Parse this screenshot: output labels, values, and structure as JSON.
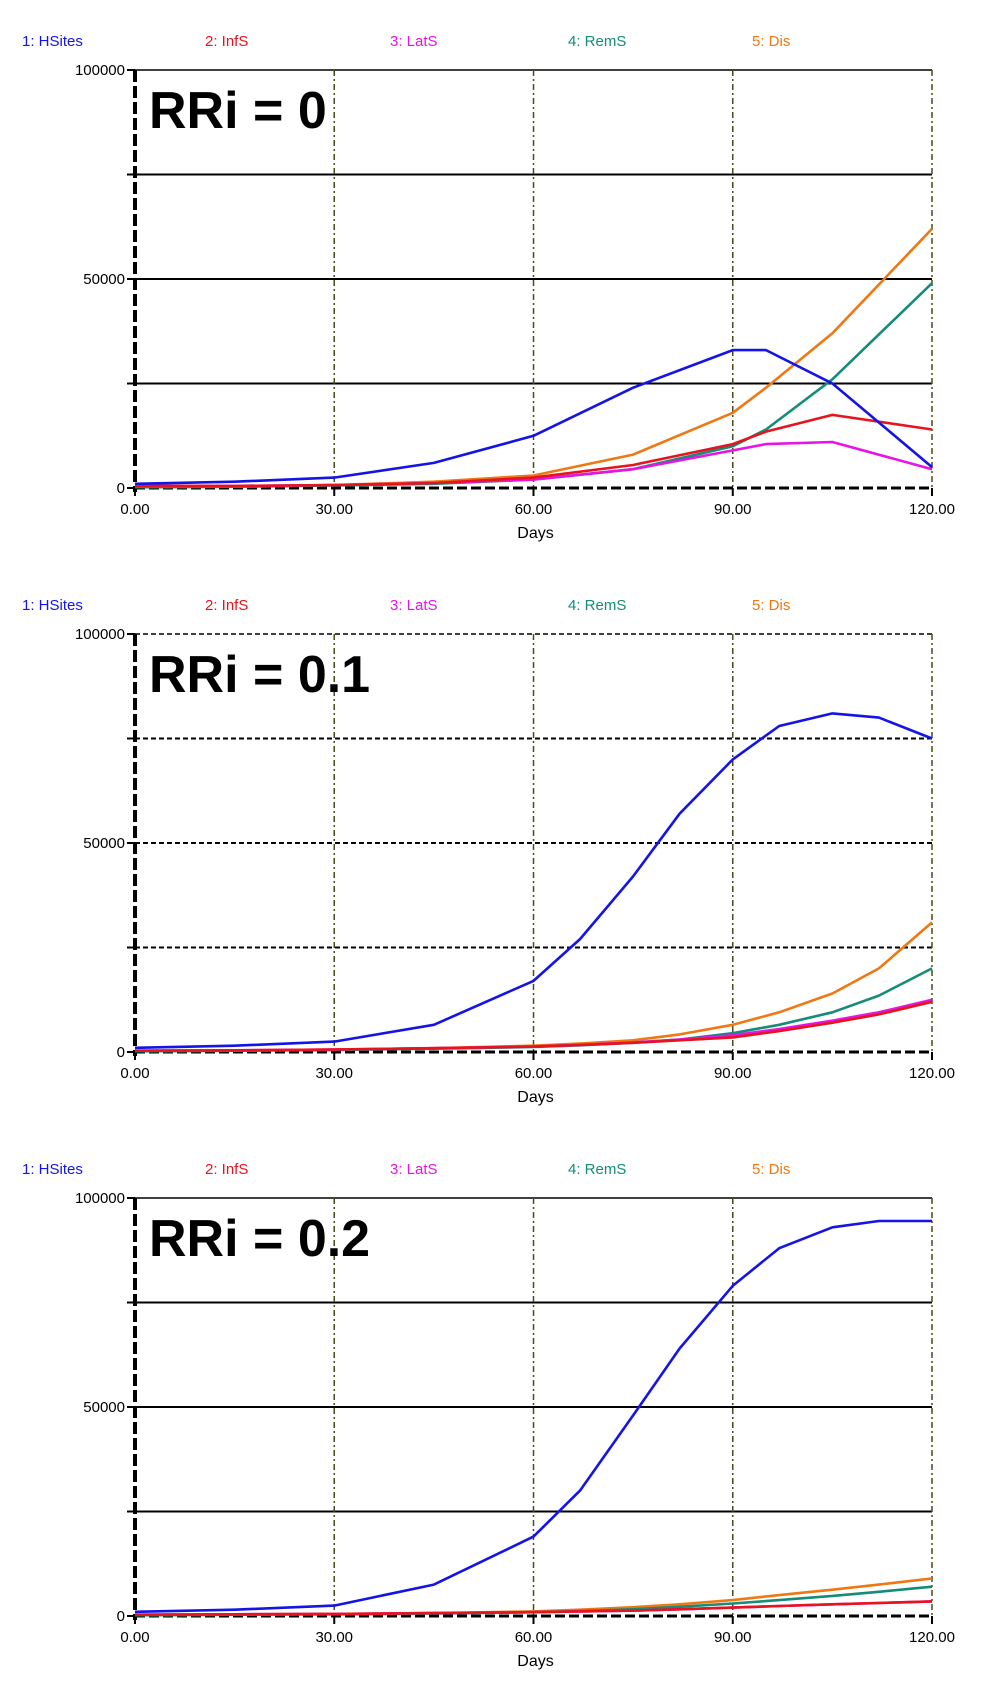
{
  "chart_data": [
    {
      "type": "line",
      "annotation": "RRi = 0",
      "xlabel": "Days",
      "xlim": [
        0,
        120
      ],
      "ylim": [
        0,
        100000
      ],
      "x_ticks": [
        "0.00",
        "30.00",
        "60.00",
        "90.00",
        "120.00"
      ],
      "y_ticks": [
        "0",
        "50000",
        "100000"
      ],
      "legend": [
        "1: HSites",
        "2: InfS",
        "3: LatS",
        "4: RemS",
        "5: Dis"
      ],
      "x": [
        0,
        15,
        30,
        45,
        60,
        75,
        90,
        95,
        105,
        120
      ],
      "series": [
        {
          "name": "1: HSites",
          "color": "#1414e6",
          "values": [
            1000,
            1500,
            2500,
            6000,
            12500,
            24000,
            33000,
            33000,
            25000,
            5000
          ]
        },
        {
          "name": "2: InfS",
          "color": "#e6141e",
          "values": [
            500,
            500,
            700,
            1200,
            2500,
            5500,
            10500,
            13500,
            17500,
            14000
          ]
        },
        {
          "name": "3: LatS",
          "color": "#e614e6",
          "values": [
            500,
            500,
            700,
            1200,
            2000,
            4500,
            9000,
            10500,
            11000,
            4500
          ]
        },
        {
          "name": "4: RemS",
          "color": "#148c78",
          "values": [
            200,
            300,
            600,
            1000,
            2000,
            4500,
            10000,
            14000,
            26000,
            49000
          ]
        },
        {
          "name": "5: Dis",
          "color": "#f07814",
          "values": [
            200,
            300,
            700,
            1500,
            3000,
            8000,
            18000,
            24000,
            37000,
            62000
          ]
        }
      ]
    },
    {
      "type": "line",
      "annotation": "RRi = 0.1",
      "xlabel": "Days",
      "xlim": [
        0,
        120
      ],
      "ylim": [
        0,
        100000
      ],
      "x_ticks": [
        "0.00",
        "30.00",
        "60.00",
        "90.00",
        "120.00"
      ],
      "y_ticks": [
        "0",
        "50000",
        "100000"
      ],
      "legend": [
        "1: HSites",
        "2: InfS",
        "3: LatS",
        "4: RemS",
        "5: Dis"
      ],
      "x": [
        0,
        15,
        30,
        45,
        60,
        67,
        75,
        82,
        90,
        97,
        105,
        112,
        120
      ],
      "series": [
        {
          "name": "1: HSites",
          "color": "#1414e6",
          "values": [
            1000,
            1500,
            2500,
            6500,
            17000,
            27000,
            42000,
            57000,
            70000,
            78000,
            81000,
            80000,
            75000
          ]
        },
        {
          "name": "2: InfS",
          "color": "#e6141e",
          "values": [
            300,
            400,
            600,
            900,
            1300,
            1700,
            2200,
            2800,
            3500,
            5000,
            7000,
            9000,
            12000
          ]
        },
        {
          "name": "3: LatS",
          "color": "#e614e6",
          "values": [
            300,
            400,
            600,
            900,
            1300,
            1700,
            2300,
            3000,
            4000,
            5500,
            7500,
            9500,
            12500
          ]
        },
        {
          "name": "4: RemS",
          "color": "#148c78",
          "values": [
            200,
            300,
            500,
            800,
            1200,
            1600,
            2200,
            3000,
            4500,
            6500,
            9500,
            13500,
            20000
          ]
        },
        {
          "name": "5: Dis",
          "color": "#f07814",
          "values": [
            200,
            300,
            600,
            900,
            1500,
            2000,
            2800,
            4200,
            6500,
            9500,
            14000,
            20000,
            31000
          ]
        }
      ]
    },
    {
      "type": "line",
      "annotation": "RRi = 0.2",
      "xlabel": "Days",
      "xlim": [
        0,
        120
      ],
      "ylim": [
        0,
        100000
      ],
      "x_ticks": [
        "0.00",
        "30.00",
        "60.00",
        "90.00",
        "120.00"
      ],
      "y_ticks": [
        "0",
        "50000",
        "100000"
      ],
      "legend": [
        "1: HSites",
        "2: InfS",
        "3: LatS",
        "4: RemS",
        "5: Dis"
      ],
      "x": [
        0,
        15,
        30,
        45,
        60,
        67,
        75,
        82,
        90,
        97,
        105,
        112,
        120
      ],
      "series": [
        {
          "name": "1: HSites",
          "color": "#1414e6",
          "values": [
            1000,
            1500,
            2500,
            7500,
            19000,
            30000,
            48000,
            64000,
            79000,
            88000,
            93000,
            94500,
            94500
          ]
        },
        {
          "name": "2: InfS",
          "color": "#e6141e",
          "values": [
            300,
            400,
            500,
            700,
            900,
            1100,
            1300,
            1600,
            2000,
            2400,
            2800,
            3100,
            3500
          ]
        },
        {
          "name": "3: LatS",
          "color": "#e614e6",
          "values": [
            300,
            400,
            500,
            700,
            900,
            1100,
            1300,
            1600,
            2000,
            2400,
            2800,
            3100,
            3500
          ]
        },
        {
          "name": "4: RemS",
          "color": "#148c78",
          "values": [
            200,
            300,
            400,
            600,
            900,
            1200,
            1600,
            2200,
            3000,
            3800,
            4800,
            5800,
            7000
          ]
        },
        {
          "name": "5: Dis",
          "color": "#f07814",
          "values": [
            200,
            300,
            500,
            700,
            1100,
            1500,
            2100,
            2800,
            3800,
            5000,
            6300,
            7500,
            9000
          ]
        }
      ]
    }
  ]
}
